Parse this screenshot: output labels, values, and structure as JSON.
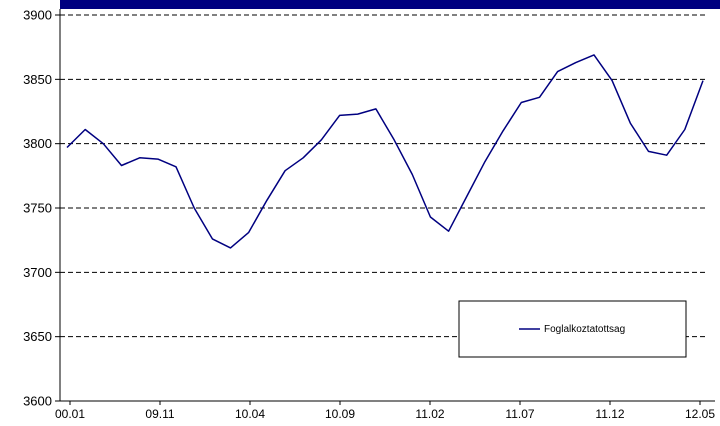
{
  "chart_data": {
    "type": "line",
    "ylim": [
      3600,
      3900
    ],
    "yticks": [
      "3900",
      "3850",
      "3800",
      "3750",
      "3700",
      "3650",
      "3600"
    ],
    "xtick_labels": [
      "00.01",
      "09.11",
      "10.04",
      "10.09",
      "11.02",
      "11.07",
      "11.12",
      "12.05"
    ],
    "grid": "horizontal dashed",
    "legend_position": "bottom-right",
    "series": [
      {
        "name": "Foglalkoztatottsag",
        "color": "#000080",
        "values": [
          3797,
          3811,
          3800,
          3783,
          3789,
          3788,
          3782,
          3750,
          3726,
          3719,
          3731,
          3756,
          3779,
          3789,
          3803,
          3822,
          3823,
          3827,
          3803,
          3776,
          3743,
          3732,
          3759,
          3786,
          3810,
          3832,
          3836,
          3856,
          3863,
          3869,
          3849,
          3816,
          3794,
          3791,
          3811,
          3849
        ]
      }
    ]
  }
}
